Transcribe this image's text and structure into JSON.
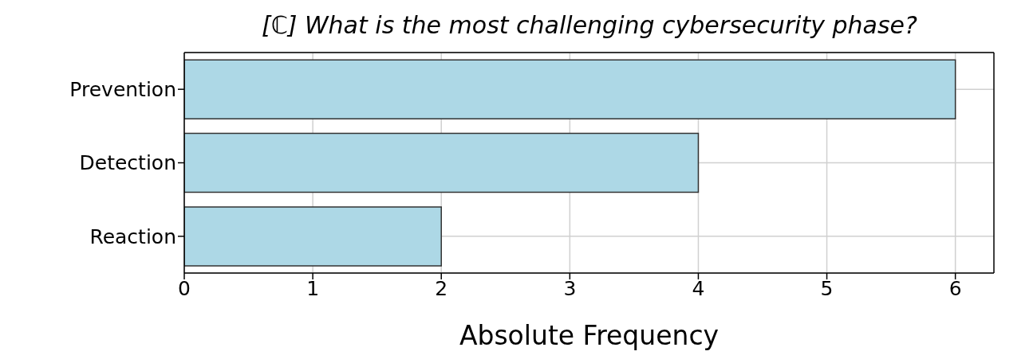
{
  "chart_data": {
    "type": "bar",
    "orientation": "horizontal",
    "title": "[ℂ] What is the most challenging cybersecurity phase?",
    "xlabel": "Absolute Frequency",
    "categories": [
      "Prevention",
      "Detection",
      "Reaction"
    ],
    "values": [
      6,
      4,
      2
    ],
    "color": "#add8e6",
    "xlim": [
      0,
      6.3
    ],
    "xticks": [
      0,
      1,
      2,
      3,
      4,
      5,
      6
    ],
    "grid": true
  }
}
